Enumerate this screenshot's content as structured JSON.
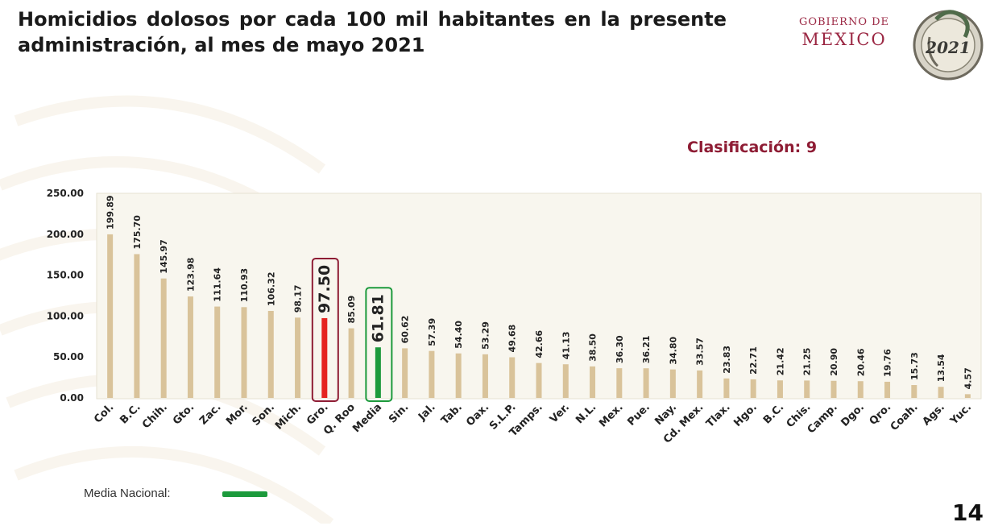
{
  "header": {
    "title": "Homicidios dolosos por cada 100 mil habitantes en la presente administración, al mes de mayo 2021",
    "gov_line1": "GOBIERNO DE",
    "gov_line2": "MÉXICO",
    "seal_text": "2021"
  },
  "classification": "Clasificación: 9",
  "legend": {
    "label": "Media Nacional:",
    "color": "#1c9a3c"
  },
  "page_number": "14",
  "colors": {
    "bar": "#d9c39a",
    "highlight": "#e52420",
    "media": "#1c9a3c",
    "highlight_box": "#8e1c34",
    "media_box": "#1c9a3c"
  },
  "chart_data": {
    "type": "bar",
    "title": "",
    "xlabel": "",
    "ylabel": "",
    "ylim": [
      0,
      250
    ],
    "yticks": [
      "0.00",
      "50.00",
      "100.00",
      "150.00",
      "200.00",
      "250.00"
    ],
    "categories": [
      "Col.",
      "B.C.",
      "Chih.",
      "Gto.",
      "Zac.",
      "Mor.",
      "Son.",
      "Mich.",
      "Gro.",
      "Q. Roo",
      "Media",
      "Sin.",
      "Jal.",
      "Tab.",
      "Oax.",
      "S.L.P.",
      "Tamps.",
      "Ver.",
      "N.L.",
      "Mex.",
      "Pue.",
      "Nay.",
      "Cd. Mex.",
      "Tlax.",
      "Hgo.",
      "B.C.",
      "Chis.",
      "Camp.",
      "Dgo.",
      "Qro.",
      "Coah.",
      "Ags.",
      "Yuc."
    ],
    "values": [
      199.89,
      175.7,
      145.97,
      123.98,
      111.64,
      110.93,
      106.32,
      98.17,
      97.5,
      85.09,
      61.81,
      60.62,
      57.39,
      54.4,
      53.29,
      49.68,
      42.66,
      41.13,
      38.5,
      36.3,
      36.21,
      34.8,
      33.57,
      23.83,
      22.71,
      21.42,
      21.25,
      20.9,
      20.46,
      19.76,
      15.73,
      13.54,
      4.57
    ],
    "labels": [
      "199.89",
      "175.70",
      "145.97",
      "123.98",
      "111.64",
      "110.93",
      "106.32",
      "98.17",
      "97.50",
      "85.09",
      "61.81",
      "60.62",
      "57.39",
      "54.40",
      "53.29",
      "49.68",
      "42.66",
      "41.13",
      "38.50",
      "36.30",
      "36.21",
      "34.80",
      "33.57",
      "23.83",
      "22.71",
      "21.42",
      "21.25",
      "20.90",
      "20.46",
      "19.76",
      "15.73",
      "13.54",
      "4.57"
    ],
    "highlight_index": 8,
    "media_index": 10,
    "grid": false
  }
}
